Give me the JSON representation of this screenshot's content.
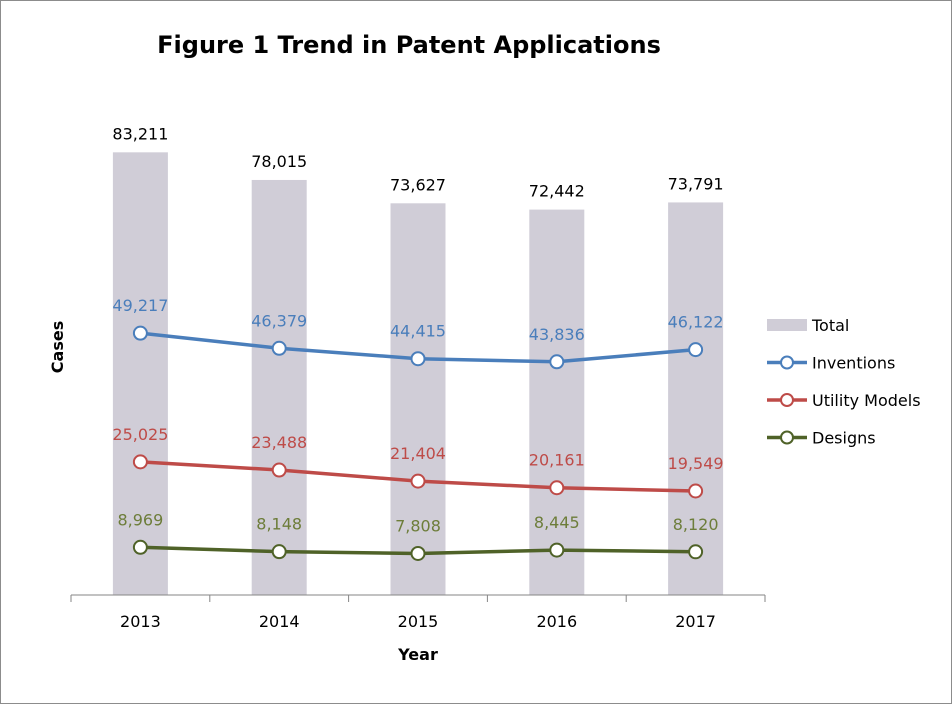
{
  "chart_data": {
    "type": "bar",
    "title": "Figure 1 Trend in Patent Applications",
    "xlabel": "Year",
    "ylabel": "Cases",
    "categories": [
      "2013",
      "2014",
      "2015",
      "2016",
      "2017"
    ],
    "series": [
      {
        "name": "Total",
        "kind": "bar",
        "color": "#d0cdd7",
        "values": [
          83211,
          78015,
          73627,
          72442,
          73791
        ],
        "labels": [
          "83,211",
          "78,015",
          "73,627",
          "72,442",
          "73,791"
        ],
        "label_color": "#000000"
      },
      {
        "name": "Inventions",
        "kind": "line",
        "color": "#4a7ebb",
        "values": [
          49217,
          46379,
          44415,
          43836,
          46122
        ],
        "labels": [
          "49,217",
          "46,379",
          "44,415",
          "43,836",
          "46,122"
        ],
        "label_color": "#4a7ebb"
      },
      {
        "name": "Utility Models",
        "kind": "line",
        "color": "#be4b48",
        "values": [
          25025,
          23488,
          21404,
          20161,
          19549
        ],
        "labels": [
          "25,025",
          "23,488",
          "21,404",
          "20,161",
          "19,549"
        ],
        "label_color": "#be4b48"
      },
      {
        "name": "Designs",
        "kind": "line",
        "color": "#4f6228",
        "values": [
          8969,
          8148,
          7808,
          8445,
          8120
        ],
        "labels": [
          "8,969",
          "8,148",
          "7,808",
          "8,445",
          "8,120"
        ],
        "label_color": "#6d7d3a"
      }
    ],
    "ylim": [
      0,
      100000
    ],
    "y_axis_visible": false,
    "grid": false,
    "legend_position": "right"
  }
}
